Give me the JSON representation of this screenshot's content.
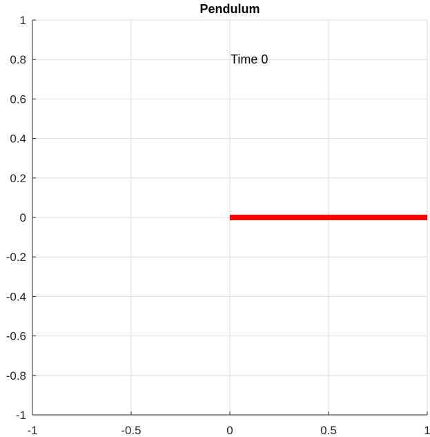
{
  "chart_data": {
    "type": "line",
    "title": "Pendulum",
    "xlabel": "",
    "ylabel": "",
    "xlim": [
      -1,
      1
    ],
    "ylim": [
      -1,
      1
    ],
    "grid": true,
    "x_ticks": [
      -1,
      -0.5,
      0,
      0.5,
      1
    ],
    "x_tick_labels": [
      "-1",
      "-0.5",
      "0",
      "0.5",
      "1"
    ],
    "y_ticks": [
      1,
      0.8,
      0.6,
      0.4,
      0.2,
      0,
      -0.2,
      -0.4,
      -0.6,
      -0.8,
      -1
    ],
    "y_tick_labels": [
      "1",
      "0.8",
      "0.6",
      "0.4",
      "0.2",
      "0",
      "-0.2",
      "-0.4",
      "-0.6",
      "-0.8",
      "-1"
    ],
    "series": [
      {
        "x": [
          0,
          1
        ],
        "y": [
          0,
          0
        ],
        "color": "#ff0000"
      }
    ],
    "annotations": [
      {
        "text": "Time 0",
        "x": 0,
        "y": 0.8
      }
    ]
  }
}
